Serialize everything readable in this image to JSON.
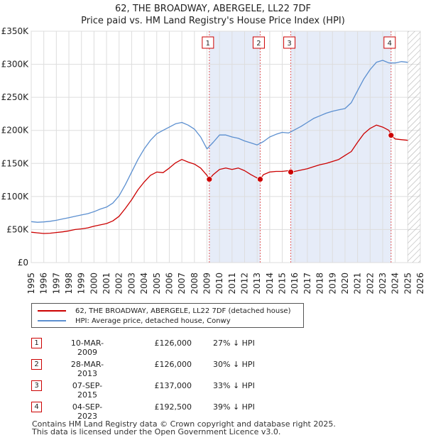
{
  "chart_data": {
    "type": "line",
    "title": "62, THE BROADWAY, ABERGELE, LL22 7DF",
    "subtitle": "Price paid vs. HM Land Registry's House Price Index (HPI)",
    "xlabel": "",
    "ylabel": "",
    "xlim": [
      1995,
      2026
    ],
    "ylim": [
      0,
      350000
    ],
    "grid": true,
    "x_ticks": [
      "1995",
      "1996",
      "1997",
      "1998",
      "1999",
      "2000",
      "2001",
      "2002",
      "2003",
      "2004",
      "2005",
      "2006",
      "2007",
      "2008",
      "2009",
      "2010",
      "2011",
      "2012",
      "2013",
      "2014",
      "2015",
      "2016",
      "2017",
      "2018",
      "2019",
      "2020",
      "2021",
      "2022",
      "2023",
      "2024",
      "2025",
      "2026"
    ],
    "y_ticks": [
      {
        "value": 0,
        "label": "£0"
      },
      {
        "value": 50000,
        "label": "£50K"
      },
      {
        "value": 100000,
        "label": "£100K"
      },
      {
        "value": 150000,
        "label": "£150K"
      },
      {
        "value": 200000,
        "label": "£200K"
      },
      {
        "value": 250000,
        "label": "£250K"
      },
      {
        "value": 300000,
        "label": "£300K"
      },
      {
        "value": 350000,
        "label": "£350K"
      }
    ],
    "series": [
      {
        "name": "62, THE BROADWAY, ABERGELE, LL22 7DF (detached house)",
        "color": "#cc0000",
        "x": [
          1995.0,
          1995.5,
          1996.0,
          1996.5,
          1997.0,
          1997.5,
          1998.0,
          1998.5,
          1999.0,
          1999.5,
          2000.0,
          2000.5,
          2001.0,
          2001.5,
          2002.0,
          2002.5,
          2003.0,
          2003.5,
          2004.0,
          2004.5,
          2005.0,
          2005.5,
          2006.0,
          2006.5,
          2007.0,
          2007.5,
          2008.0,
          2008.5,
          2009.0,
          2009.19,
          2009.5,
          2010.0,
          2010.5,
          2011.0,
          2011.5,
          2012.0,
          2012.5,
          2013.0,
          2013.24,
          2013.5,
          2014.0,
          2014.5,
          2015.0,
          2015.5,
          2015.68,
          2016.0,
          2016.5,
          2017.0,
          2017.5,
          2018.0,
          2018.5,
          2019.0,
          2019.5,
          2020.0,
          2020.5,
          2021.0,
          2021.5,
          2022.0,
          2022.5,
          2023.0,
          2023.5,
          2023.67,
          2024.0,
          2024.5,
          2025.0
        ],
        "y": [
          46000,
          45000,
          44000,
          44500,
          45500,
          46500,
          48000,
          50000,
          51000,
          52500,
          55000,
          57000,
          59000,
          63000,
          70000,
          82000,
          95000,
          110000,
          122000,
          132000,
          137000,
          136000,
          143000,
          151000,
          156000,
          152000,
          149000,
          143000,
          132000,
          126000,
          133000,
          141000,
          143000,
          141000,
          143000,
          139000,
          133000,
          128000,
          126000,
          133000,
          137000,
          138000,
          138000,
          139000,
          137000,
          138000,
          140000,
          142000,
          145000,
          148000,
          150000,
          153000,
          156000,
          162000,
          168000,
          182000,
          195000,
          203000,
          208000,
          205000,
          200000,
          192500,
          187000,
          186000,
          185000
        ],
        "markers": [
          {
            "x": 2009.19,
            "y": 126000,
            "label": "1"
          },
          {
            "x": 2013.24,
            "y": 126000,
            "label": "2"
          },
          {
            "x": 2015.68,
            "y": 137000,
            "label": "3"
          },
          {
            "x": 2023.67,
            "y": 192500,
            "label": "4"
          }
        ]
      },
      {
        "name": "HPI: Average price, detached house, Conwy",
        "color": "#5b8fd0",
        "x": [
          1995.0,
          1995.5,
          1996.0,
          1996.5,
          1997.0,
          1997.5,
          1998.0,
          1998.5,
          1999.0,
          1999.5,
          2000.0,
          2000.5,
          2001.0,
          2001.5,
          2002.0,
          2002.5,
          2003.0,
          2003.5,
          2004.0,
          2004.5,
          2005.0,
          2005.5,
          2006.0,
          2006.5,
          2007.0,
          2007.5,
          2008.0,
          2008.5,
          2009.0,
          2009.5,
          2010.0,
          2010.5,
          2011.0,
          2011.5,
          2012.0,
          2012.5,
          2013.0,
          2013.5,
          2014.0,
          2014.5,
          2015.0,
          2015.5,
          2016.0,
          2016.5,
          2017.0,
          2017.5,
          2018.0,
          2018.5,
          2019.0,
          2019.5,
          2020.0,
          2020.5,
          2021.0,
          2021.5,
          2022.0,
          2022.5,
          2023.0,
          2023.5,
          2024.0,
          2024.5,
          2025.0
        ],
        "y": [
          62000,
          61000,
          61500,
          62500,
          64000,
          66000,
          68000,
          70000,
          72000,
          74000,
          77000,
          81000,
          84000,
          90000,
          101000,
          118000,
          137000,
          156000,
          172000,
          185000,
          195000,
          200000,
          205000,
          210000,
          212000,
          208000,
          202000,
          190000,
          172000,
          182000,
          193000,
          193000,
          190000,
          188000,
          184000,
          181000,
          178000,
          183000,
          190000,
          194000,
          197000,
          196000,
          201000,
          206000,
          212000,
          218000,
          222000,
          226000,
          229000,
          231000,
          233000,
          242000,
          260000,
          278000,
          292000,
          303000,
          306000,
          302000,
          302000,
          304000,
          303000
        ]
      }
    ],
    "annotations": [
      {
        "label": "1",
        "x": 2009.19
      },
      {
        "label": "2",
        "x": 2013.24
      },
      {
        "label": "3",
        "x": 2015.68
      },
      {
        "label": "4",
        "x": 2023.67
      }
    ],
    "shaded_regions": [
      [
        2009.19,
        2013.24
      ],
      [
        2015.68,
        2023.67
      ]
    ],
    "future_hatch_from": 2025.0
  },
  "legend": {
    "items": [
      {
        "label": "62, THE BROADWAY, ABERGELE, LL22 7DF (detached house)",
        "color": "#cc0000"
      },
      {
        "label": "HPI: Average price, detached house, Conwy",
        "color": "#5b8fd0"
      }
    ]
  },
  "transactions": [
    {
      "num": "1",
      "date": "10-MAR-2009",
      "price": "£126,000",
      "hpi": "27% ↓ HPI"
    },
    {
      "num": "2",
      "date": "28-MAR-2013",
      "price": "£126,000",
      "hpi": "30% ↓ HPI"
    },
    {
      "num": "3",
      "date": "07-SEP-2015",
      "price": "£137,000",
      "hpi": "33% ↓ HPI"
    },
    {
      "num": "4",
      "date": "04-SEP-2023",
      "price": "£192,500",
      "hpi": "39% ↓ HPI"
    }
  ],
  "footer": {
    "line1": "Contains HM Land Registry data © Crown copyright and database right 2025.",
    "line2": "This data is licensed under the Open Government Licence v3.0."
  }
}
